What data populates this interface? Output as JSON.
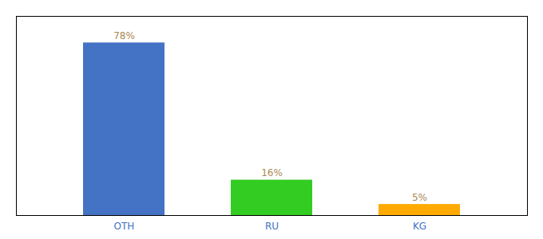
{
  "chart_data": {
    "type": "bar",
    "categories": [
      "OTH",
      "RU",
      "KG"
    ],
    "values": [
      78,
      16,
      5
    ],
    "value_labels": [
      "78%",
      "16%",
      "5%"
    ],
    "colors": [
      "#4472C4",
      "#33CC22",
      "#FFAA00"
    ],
    "ylim": [
      0,
      90
    ],
    "grid": false,
    "data_labels": true,
    "tick_labels": "x"
  }
}
